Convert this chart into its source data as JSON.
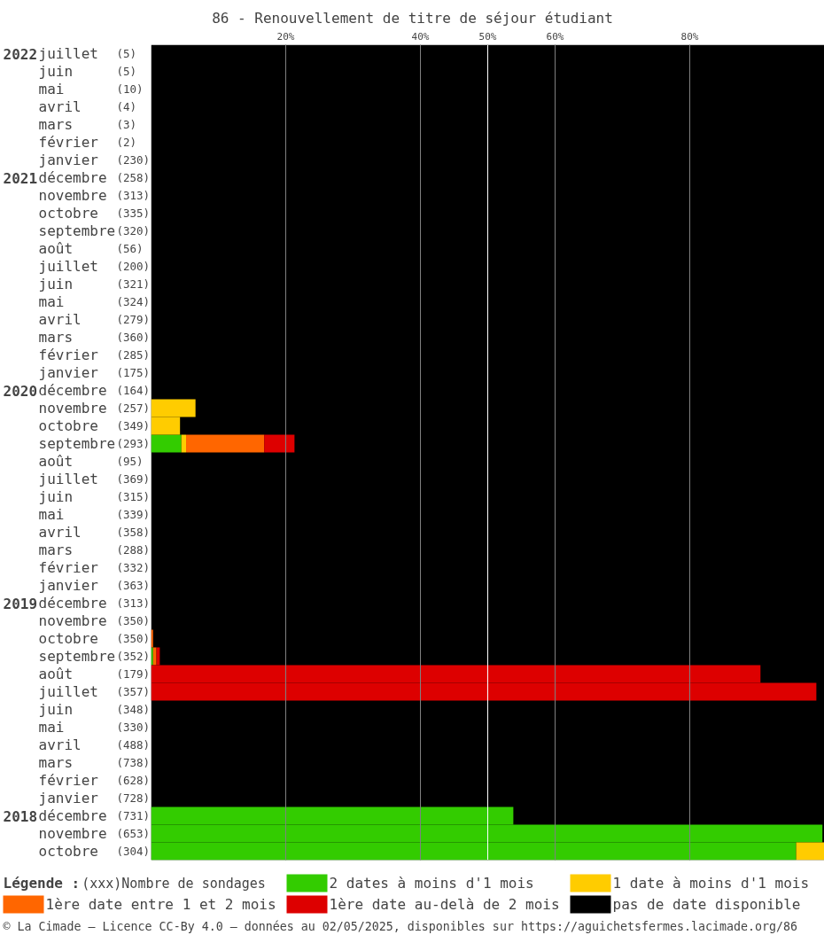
{
  "chart_data": {
    "type": "bar",
    "orientation": "horizontal",
    "stacked": true,
    "title": "86 - Renouvellement de titre de séjour étudiant",
    "categories": [
      "2022juillet (5)",
      "juin (5)",
      "mai (10)",
      "avril (4)",
      "mars (3)",
      "février (2)",
      "janvier (230)",
      "2021décembre (258)",
      "novembre (313)",
      "octobre (335)",
      "septembre(320)",
      "août (56)",
      "juillet (200)",
      "juin (321)",
      "mai (324)",
      "avril (279)",
      "mars (360)",
      "février (285)",
      "janvier (175)",
      "2020décembre (164)",
      "novembre (257)",
      "octobre (349)",
      "septembre(293)",
      "août (95)",
      "juillet (369)",
      "juin (315)",
      "mai (339)",
      "avril (358)",
      "mars (288)",
      "février (332)",
      "janvier (363)",
      "2019décembre (313)",
      "novembre (350)",
      "octobre (350)",
      "septembre(352)",
      "août (179)",
      "juillet (357)",
      "juin (348)",
      "mai (330)",
      "avril (488)",
      "mars (738)",
      "février (628)",
      "janvier (728)",
      "2018décembre (731)",
      "novembre (653)",
      "octobre (304)"
    ],
    "series": [
      {
        "name": "2 dates à moins d'1 mois",
        "color": "#33cc00",
        "values": [
          0,
          0,
          0,
          0,
          0,
          0,
          0,
          0,
          0,
          0,
          0,
          0,
          0,
          0,
          0,
          0,
          0,
          0,
          0,
          0,
          0,
          0,
          4.5,
          0,
          0,
          0,
          0,
          0,
          0,
          0,
          0,
          0,
          0,
          0,
          0.3,
          0,
          0,
          0,
          0,
          0,
          0,
          0,
          0,
          53.8,
          99.7,
          95.8
        ]
      },
      {
        "name": "1 date à moins d'1 mois",
        "color": "#ffcc00",
        "values": [
          0,
          0,
          0,
          0,
          0,
          0,
          0,
          0,
          0,
          0,
          0,
          0,
          0,
          0,
          0,
          0,
          0,
          0,
          0,
          0,
          6.6,
          4.3,
          0.7,
          0,
          0,
          0,
          0,
          0,
          0,
          0,
          0,
          0,
          0,
          0,
          0,
          0,
          0,
          0,
          0,
          0,
          0,
          0,
          0,
          0,
          0,
          4.2
        ]
      },
      {
        "name": "1ère date entre 1 et 2 mois",
        "color": "#ff6600",
        "values": [
          0,
          0,
          0,
          0,
          0,
          0,
          0,
          0,
          0,
          0,
          0,
          0,
          0,
          0,
          0,
          0,
          0,
          0,
          0,
          0,
          0,
          0,
          11.6,
          0,
          0,
          0,
          0,
          0,
          0,
          0,
          0,
          0,
          0,
          0.3,
          0.5,
          0,
          0,
          0,
          0,
          0,
          0,
          0,
          0,
          0,
          0,
          0
        ]
      },
      {
        "name": "1ère date au-delà de 2 mois",
        "color": "#dd0000",
        "values": [
          0,
          0,
          0,
          0,
          0,
          0,
          0,
          0,
          0,
          0,
          0,
          0,
          0,
          0,
          0,
          0,
          0,
          0,
          0,
          0,
          0,
          0,
          4.5,
          0,
          0,
          0,
          0,
          0,
          0,
          0,
          0,
          0,
          0,
          0,
          0.5,
          90.5,
          98.8,
          0,
          0,
          0,
          0,
          0,
          0,
          0,
          0,
          0
        ]
      }
    ],
    "bands": [
      {
        "axis": "x",
        "from": 0,
        "to": 100,
        "label": "pas de date disponible",
        "color": "#000000"
      }
    ],
    "xlim": [
      0,
      100
    ],
    "xticks": [
      {
        "value": 20,
        "label": "20%"
      },
      {
        "value": 40,
        "label": "40%"
      },
      {
        "value": 50,
        "label": "50%"
      },
      {
        "value": 60,
        "label": "60%"
      },
      {
        "value": 80,
        "label": "80%"
      }
    ],
    "grid": "x",
    "ref_lines": [
      {
        "axis": "x",
        "value": 50,
        "color": "#ffffff"
      }
    ],
    "legend": "bottom",
    "legend_title": "Légende :",
    "annotations": [
      "(xxx)Nombre de sondages",
      "© La Cimade — Licence CC-By 4.0 — données au 02/05/2025, disponibles sur https://aguichetsfermes.lacimade.org/86"
    ]
  }
}
